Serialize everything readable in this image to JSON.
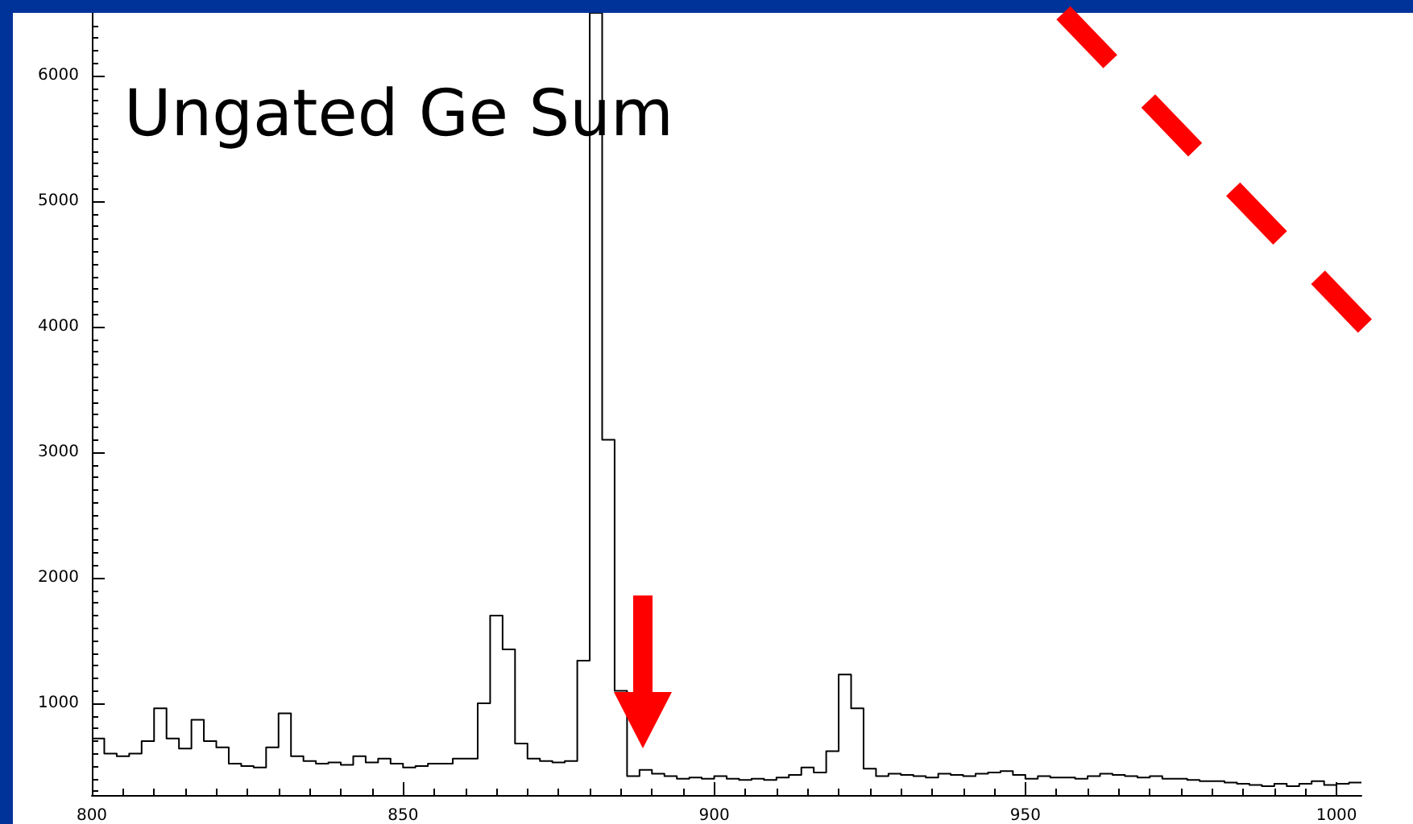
{
  "chart_data": {
    "type": "histogram",
    "title": "Ungated Ge Sum",
    "bins": [
      800,
      802,
      804,
      806,
      808,
      810,
      812,
      814,
      816,
      818,
      820,
      822,
      824,
      826,
      828,
      830,
      832,
      834,
      836,
      838,
      840,
      842,
      844,
      846,
      848,
      850,
      852,
      854,
      856,
      858,
      860,
      862,
      864,
      866,
      868,
      870,
      872,
      874,
      876,
      878,
      880,
      882,
      884,
      886,
      888,
      890,
      892,
      894,
      896,
      898,
      900,
      902,
      904,
      906,
      908,
      910,
      912,
      914,
      916,
      918,
      920,
      922,
      924,
      926,
      928,
      930,
      932,
      934,
      936,
      938,
      940,
      942,
      944,
      946,
      948,
      950,
      952,
      954,
      956,
      958,
      960,
      962,
      964,
      966,
      968,
      970,
      972,
      974,
      976,
      978,
      980,
      982,
      984,
      986,
      988,
      990,
      992,
      994,
      996,
      998,
      1000,
      1002,
      1004
    ],
    "values": [
      720,
      600,
      580,
      600,
      700,
      960,
      720,
      640,
      870,
      700,
      650,
      520,
      500,
      490,
      650,
      920,
      580,
      540,
      520,
      530,
      510,
      580,
      530,
      560,
      520,
      490,
      500,
      520,
      520,
      560,
      560,
      1000,
      1700,
      1430,
      680,
      560,
      540,
      530,
      540,
      1340,
      6500,
      3100,
      1100,
      420,
      470,
      440,
      420,
      400,
      410,
      400,
      420,
      400,
      390,
      400,
      390,
      410,
      430,
      490,
      450,
      620,
      1230,
      960,
      480,
      420,
      440,
      430,
      420,
      410,
      440,
      430,
      420,
      440,
      450,
      460,
      430,
      400,
      420,
      410,
      410,
      400,
      420,
      440,
      430,
      420,
      410,
      420,
      400,
      400,
      390,
      380,
      380,
      370,
      360,
      350,
      340,
      360,
      340,
      360,
      380,
      350,
      360,
      370
    ],
    "color": "#000000",
    "xlim": [
      800,
      1004
    ],
    "xticks": [
      800,
      850,
      900,
      950,
      1000
    ],
    "ylim": [
      270,
      6500
    ],
    "yticks": [
      1000,
      2000,
      3000,
      4000,
      5000,
      6000
    ]
  }
}
